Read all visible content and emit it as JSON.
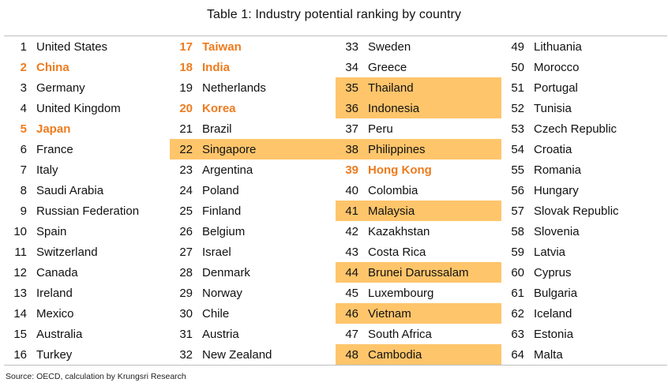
{
  "title": "Table 1: Industry potential ranking by country",
  "source": "Source: OECD, calculation by Krungsri Research",
  "colors": {
    "highlight_fill": "#ffc56b",
    "highlight_text": "#ee7b1e",
    "text": "#111111"
  },
  "columns": [
    [
      {
        "rank": "1",
        "country": "United States",
        "style": "normal"
      },
      {
        "rank": "2",
        "country": "China",
        "style": "orange"
      },
      {
        "rank": "3",
        "country": "Germany",
        "style": "normal"
      },
      {
        "rank": "4",
        "country": "United Kingdom",
        "style": "normal"
      },
      {
        "rank": "5",
        "country": "Japan",
        "style": "orange"
      },
      {
        "rank": "6",
        "country": "France",
        "style": "normal"
      },
      {
        "rank": "7",
        "country": "Italy",
        "style": "normal"
      },
      {
        "rank": "8",
        "country": "Saudi Arabia",
        "style": "normal"
      },
      {
        "rank": "9",
        "country": "Russian Federation",
        "style": "normal"
      },
      {
        "rank": "10",
        "country": "Spain",
        "style": "normal"
      },
      {
        "rank": "11",
        "country": "Switzerland",
        "style": "normal"
      },
      {
        "rank": "12",
        "country": "Canada",
        "style": "normal"
      },
      {
        "rank": "13",
        "country": "Ireland",
        "style": "normal"
      },
      {
        "rank": "14",
        "country": "Mexico",
        "style": "normal"
      },
      {
        "rank": "15",
        "country": "Australia",
        "style": "normal"
      },
      {
        "rank": "16",
        "country": "Turkey",
        "style": "normal"
      }
    ],
    [
      {
        "rank": "17",
        "country": "Taiwan",
        "style": "orange"
      },
      {
        "rank": "18",
        "country": "India",
        "style": "orange"
      },
      {
        "rank": "19",
        "country": "Netherlands",
        "style": "normal"
      },
      {
        "rank": "20",
        "country": "Korea",
        "style": "orange"
      },
      {
        "rank": "21",
        "country": "Brazil",
        "style": "normal"
      },
      {
        "rank": "22",
        "country": "Singapore",
        "style": "highlight"
      },
      {
        "rank": "23",
        "country": "Argentina",
        "style": "normal"
      },
      {
        "rank": "24",
        "country": "Poland",
        "style": "normal"
      },
      {
        "rank": "25",
        "country": "Finland",
        "style": "normal"
      },
      {
        "rank": "26",
        "country": "Belgium",
        "style": "normal"
      },
      {
        "rank": "27",
        "country": "Israel",
        "style": "normal"
      },
      {
        "rank": "28",
        "country": "Denmark",
        "style": "normal"
      },
      {
        "rank": "29",
        "country": "Norway",
        "style": "normal"
      },
      {
        "rank": "30",
        "country": "Chile",
        "style": "normal"
      },
      {
        "rank": "31",
        "country": "Austria",
        "style": "normal"
      },
      {
        "rank": "32",
        "country": "New Zealand",
        "style": "normal"
      }
    ],
    [
      {
        "rank": "33",
        "country": "Sweden",
        "style": "normal"
      },
      {
        "rank": "34",
        "country": "Greece",
        "style": "normal"
      },
      {
        "rank": "35",
        "country": "Thailand",
        "style": "highlight"
      },
      {
        "rank": "36",
        "country": "Indonesia",
        "style": "highlight"
      },
      {
        "rank": "37",
        "country": "Peru",
        "style": "normal"
      },
      {
        "rank": "38",
        "country": "Philippines",
        "style": "highlight"
      },
      {
        "rank": "39",
        "country": "Hong Kong",
        "style": "orange"
      },
      {
        "rank": "40",
        "country": "Colombia",
        "style": "normal"
      },
      {
        "rank": "41",
        "country": "Malaysia",
        "style": "highlight"
      },
      {
        "rank": "42",
        "country": "Kazakhstan",
        "style": "normal"
      },
      {
        "rank": "43",
        "country": "Costa Rica",
        "style": "normal"
      },
      {
        "rank": "44",
        "country": "Brunei Darussalam",
        "style": "highlight"
      },
      {
        "rank": "45",
        "country": "Luxembourg",
        "style": "normal"
      },
      {
        "rank": "46",
        "country": "Vietnam",
        "style": "highlight"
      },
      {
        "rank": "47",
        "country": "South Africa",
        "style": "normal"
      },
      {
        "rank": "48",
        "country": "Cambodia",
        "style": "highlight"
      }
    ],
    [
      {
        "rank": "49",
        "country": "Lithuania",
        "style": "normal"
      },
      {
        "rank": "50",
        "country": "Morocco",
        "style": "normal"
      },
      {
        "rank": "51",
        "country": "Portugal",
        "style": "normal"
      },
      {
        "rank": "52",
        "country": "Tunisia",
        "style": "normal"
      },
      {
        "rank": "53",
        "country": "Czech Republic",
        "style": "normal"
      },
      {
        "rank": "54",
        "country": "Croatia",
        "style": "normal"
      },
      {
        "rank": "55",
        "country": "Romania",
        "style": "normal"
      },
      {
        "rank": "56",
        "country": "Hungary",
        "style": "normal"
      },
      {
        "rank": "57",
        "country": "Slovak Republic",
        "style": "normal"
      },
      {
        "rank": "58",
        "country": "Slovenia",
        "style": "normal"
      },
      {
        "rank": "59",
        "country": "Latvia",
        "style": "normal"
      },
      {
        "rank": "60",
        "country": "Cyprus",
        "style": "normal"
      },
      {
        "rank": "61",
        "country": "Bulgaria",
        "style": "normal"
      },
      {
        "rank": "62",
        "country": "Iceland",
        "style": "normal"
      },
      {
        "rank": "63",
        "country": "Estonia",
        "style": "normal"
      },
      {
        "rank": "64",
        "country": "Malta",
        "style": "normal"
      }
    ]
  ]
}
